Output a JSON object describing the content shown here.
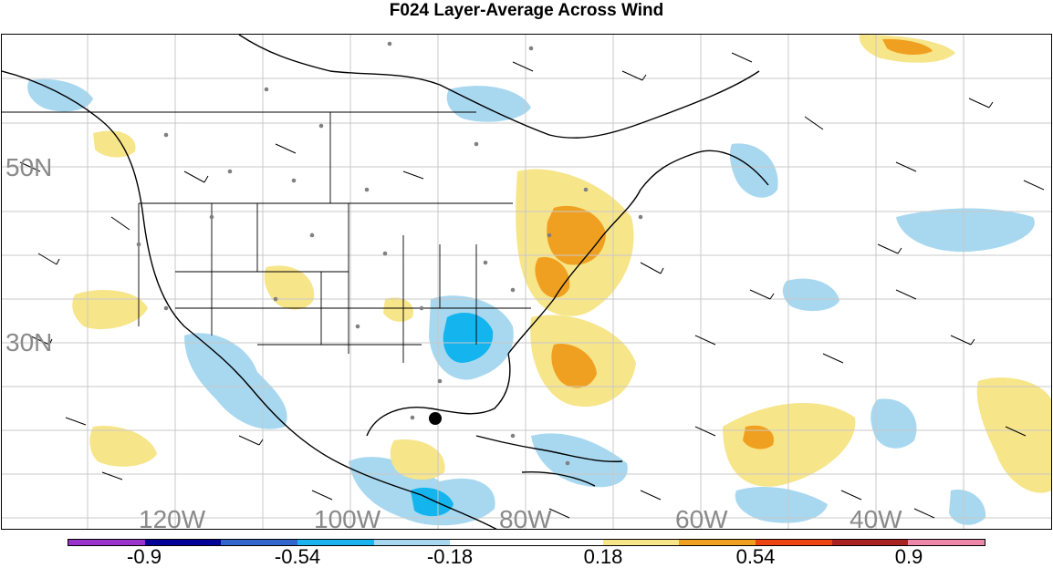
{
  "title": "F024 Layer-Average Across Wind",
  "map": {
    "lat_labels": [
      "50N",
      "30N"
    ],
    "lon_labels": [
      "120W",
      "100W",
      "80W",
      "60W",
      "40W"
    ],
    "grid_color": "#c8c8c8",
    "label_color": "#8a8a8a",
    "positive_fill_light": "#f7e58a",
    "positive_fill_mid": "#f0a020",
    "negative_fill_light": "#a8d8f0",
    "negative_fill_mid": "#14b4ee"
  },
  "colorbar": {
    "colors": [
      "#9933cc",
      "#000099",
      "#3366cc",
      "#1ab2ef",
      "#a8d8f0",
      "#ffffff",
      "#ffffff",
      "#f7e58a",
      "#f0a020",
      "#ee4411",
      "#aa2222",
      "#ee88aa"
    ],
    "labels": [
      "-0.9",
      "-0.54",
      "-0.18",
      "0.18",
      "0.54",
      "0.9"
    ]
  }
}
